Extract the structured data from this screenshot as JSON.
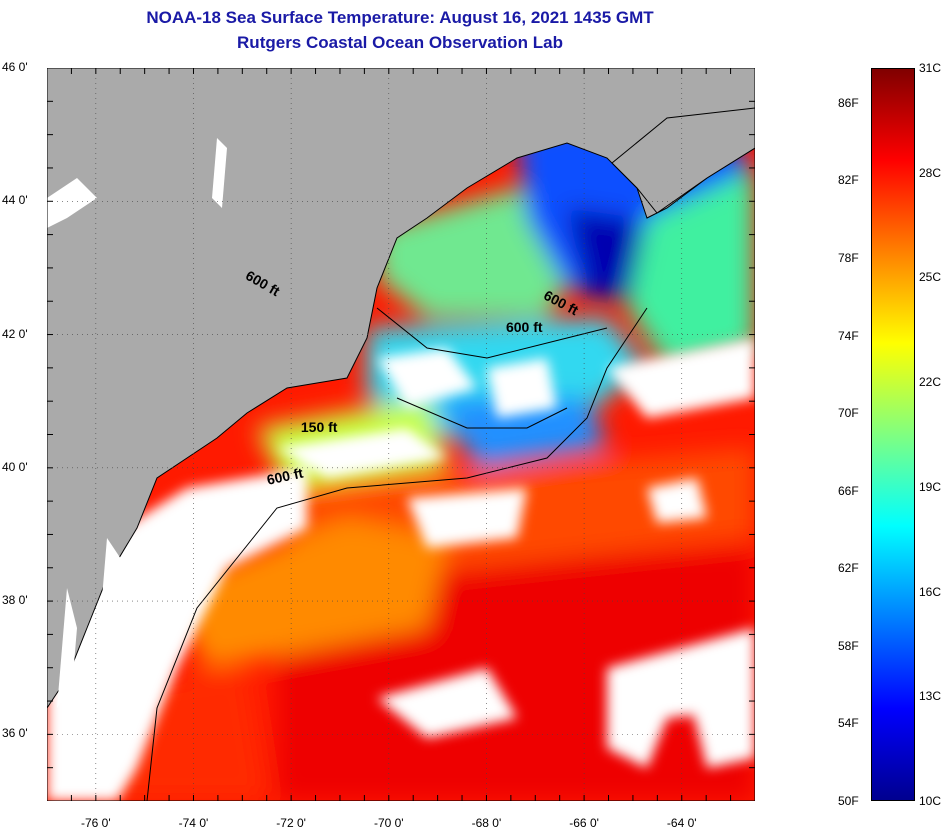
{
  "title_line1": "NOAA-18 Sea Surface Temperature:  August 16, 2021 1435 GMT",
  "title_line2": "Rutgers Coastal Ocean Observation Lab",
  "colors": {
    "title": "#1a1aa6",
    "land": "#aaaaaa",
    "cloud": "#ffffff",
    "colorbar": [
      "#00008f",
      "#0000ff",
      "#0080ff",
      "#00ffff",
      "#80ff80",
      "#ffff00",
      "#ff8000",
      "#ff0000",
      "#800000"
    ]
  },
  "map": {
    "lon_range": [
      -77,
      -62.5
    ],
    "lat_range": [
      35,
      46
    ],
    "lat_ticks": [
      {
        "value": 46,
        "label": "46 0'"
      },
      {
        "value": 44,
        "label": "44 0'"
      },
      {
        "value": 42,
        "label": "42 0'"
      },
      {
        "value": 40,
        "label": "40 0'"
      },
      {
        "value": 38,
        "label": "38 0'"
      },
      {
        "value": 36,
        "label": "36 0'"
      }
    ],
    "lon_ticks": [
      {
        "value": -76,
        "label": "-76 0'"
      },
      {
        "value": -74,
        "label": "-74 0'"
      },
      {
        "value": -72,
        "label": "-72 0'"
      },
      {
        "value": -70,
        "label": "-70 0'"
      },
      {
        "value": -68,
        "label": "-68 0'"
      },
      {
        "value": -66,
        "label": "-66 0'"
      },
      {
        "value": -64,
        "label": "-64 0'"
      }
    ],
    "depth_labels": [
      {
        "text": "600 ft",
        "lon": -72.9,
        "lat": 42.9,
        "angle": 30
      },
      {
        "text": "600 ft",
        "lon": -66.8,
        "lat": 42.6,
        "angle": 28
      },
      {
        "text": "600 ft",
        "lon": -67.6,
        "lat": 42.1,
        "angle": 0
      },
      {
        "text": "150 ft",
        "lon": -71.8,
        "lat": 40.6,
        "angle": 0
      },
      {
        "text": "600 ft",
        "lon": -72.5,
        "lat": 39.8,
        "angle": -12
      }
    ]
  },
  "colorbar": {
    "fahrenheit": [
      {
        "value": 86,
        "label": "86F"
      },
      {
        "value": 82,
        "label": "82F"
      },
      {
        "value": 78,
        "label": "78F"
      },
      {
        "value": 74,
        "label": "74F"
      },
      {
        "value": 70,
        "label": "70F"
      },
      {
        "value": 66,
        "label": "66F"
      },
      {
        "value": 62,
        "label": "62F"
      },
      {
        "value": 58,
        "label": "58F"
      },
      {
        "value": 54,
        "label": "54F"
      },
      {
        "value": 50,
        "label": "50F"
      }
    ],
    "celsius": [
      {
        "value": 31,
        "label": "31C"
      },
      {
        "value": 28,
        "label": "28C"
      },
      {
        "value": 25,
        "label": "25C"
      },
      {
        "value": 22,
        "label": "22C"
      },
      {
        "value": 19,
        "label": "19C"
      },
      {
        "value": 16,
        "label": "16C"
      },
      {
        "value": 13,
        "label": "13C"
      },
      {
        "value": 10,
        "label": "10C"
      }
    ]
  }
}
